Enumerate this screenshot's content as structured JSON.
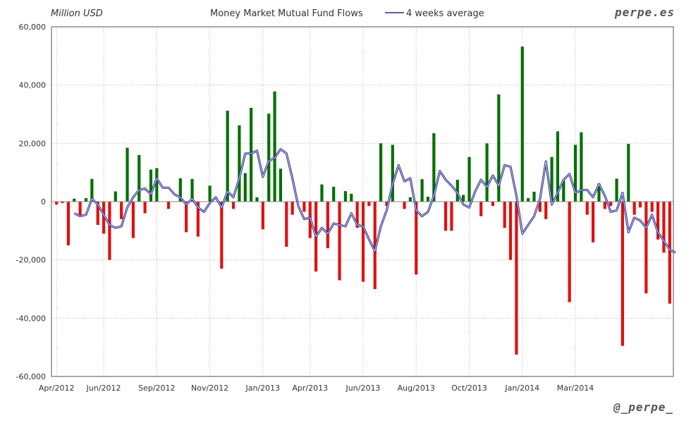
{
  "chart_data": {
    "type": "bar",
    "title": "Money Market Mutual Fund Flows",
    "ylabel": "Million USD",
    "legend": [
      "4 weeks average"
    ],
    "legend_position": "top",
    "ylim": [
      -60000,
      60000
    ],
    "y_ticks": [
      60000,
      40000,
      20000,
      0,
      -20000,
      -40000,
      -60000
    ],
    "y_tick_labels": [
      "60,000",
      "40,000",
      "20,000",
      "0",
      "-20,000",
      "-40,000",
      "-60,000"
    ],
    "x_tick_labels": [
      "Apr/2012",
      "Jun/2012",
      "Sep/2012",
      "Nov/2012",
      "Jan/2013",
      "Apr/2013",
      "Jun/2013",
      "Aug/2013",
      "Oct/2013",
      "Jan/2014",
      "Mar/2014"
    ],
    "x_tick_weeks": [
      0,
      8,
      17,
      26,
      35,
      43,
      52,
      61,
      70,
      79,
      88
    ],
    "grid": true,
    "series": [
      {
        "name": "Weekly flows",
        "type": "bar",
        "positive_color": "#007000",
        "negative_color": "#e01010",
        "values": [
          -1000,
          -500,
          -15000,
          1000,
          -5000,
          1200,
          7800,
          -8000,
          -11000,
          -20000,
          3500,
          -6000,
          18500,
          -12500,
          16000,
          -4000,
          11000,
          11500,
          0,
          -2500,
          0,
          8000,
          -10500,
          7800,
          -12000,
          0,
          5500,
          0,
          -23000,
          31200,
          -2500,
          26200,
          9800,
          32200,
          1500,
          -9500,
          30200,
          37800,
          11300,
          -15500,
          -4500,
          0,
          -3500,
          -12500,
          -24000,
          5900,
          -16000,
          5100,
          -27000,
          3600,
          2700,
          -9000,
          -27500,
          -1500,
          -30000,
          20000,
          -1500,
          19500,
          0,
          -2500,
          1500,
          -25000,
          7700,
          1700,
          23500,
          0,
          -10000,
          -10000,
          7500,
          2300,
          15300,
          0,
          -5000,
          20000,
          -1500,
          36800,
          -9000,
          -20000,
          -52500,
          53200,
          1200,
          3400,
          -3500,
          -6000,
          15300,
          24100,
          7200,
          -34500,
          19500,
          23800,
          -4500,
          -14000,
          6200,
          -2500,
          -1500,
          7900,
          -49500,
          19800,
          -4500,
          -2000,
          -31500,
          -3500,
          -13000,
          -17500,
          -35000
        ]
      },
      {
        "name": "4 weeks average",
        "type": "line",
        "color": "#2a2a8a",
        "values": [
          null,
          null,
          null,
          -4000,
          -5000,
          -4500,
          1000,
          -1000,
          -4500,
          -8000,
          -9000,
          -8500,
          -2000,
          1500,
          4000,
          4500,
          2500,
          8000,
          4800,
          4800,
          2500,
          1500,
          -1000,
          1000,
          -2000,
          -3500,
          -500,
          1500,
          -2000,
          3500,
          1500,
          8000,
          16500,
          16500,
          17500,
          8500,
          14000,
          15000,
          18000,
          16500,
          8000,
          -1500,
          -6000,
          -5500,
          -12000,
          -9000,
          -11000,
          -7500,
          -8000,
          -8500,
          -4000,
          -8000,
          -8500,
          -13000,
          -17000,
          -8500,
          -3000,
          6000,
          12500,
          7000,
          8000,
          -3000,
          -5000,
          -3500,
          2000,
          10500,
          7500,
          5500,
          3000,
          -1000,
          -2000,
          3500,
          7500,
          5000,
          9000,
          5500,
          12500,
          12000,
          2000,
          -11000,
          -8000,
          -5000,
          1000,
          13800,
          -1000,
          3000,
          7500,
          9500,
          3000,
          4000,
          4000,
          1500,
          6000,
          2000,
          -3500,
          -3000,
          3000,
          -10500,
          -5500,
          -6500,
          -9000,
          -4500,
          -10500,
          -13500,
          -16500,
          -17500
        ]
      }
    ]
  },
  "branding": {
    "site": "perpe.es",
    "handle": "@_perpe_"
  }
}
